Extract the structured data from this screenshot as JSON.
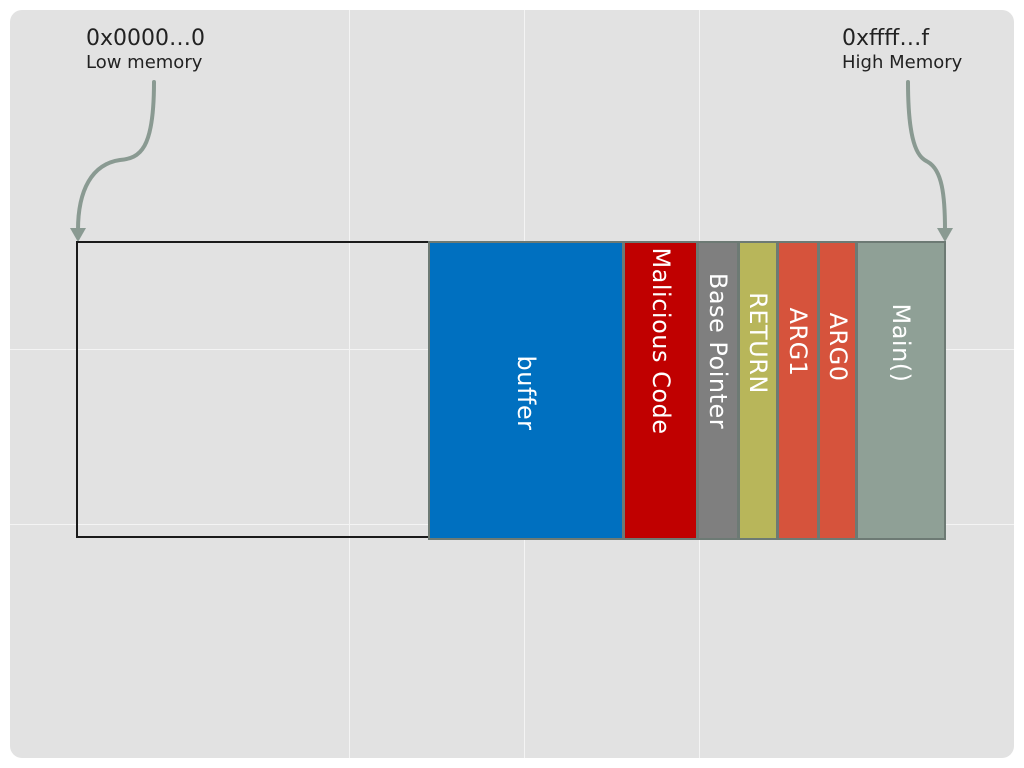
{
  "low_memory": {
    "address": "0x0000…0",
    "label": "Low memory"
  },
  "high_memory": {
    "address": "0xffff…f",
    "label": "High Memory"
  },
  "stack_segments": [
    {
      "label": "buffer",
      "color": "#0070c0",
      "text_color": "#ffffff"
    },
    {
      "label": "Malicious Code",
      "color": "#c00000",
      "text_color": "#ffffff"
    },
    {
      "label": "Base Pointer",
      "color": "#7f7f7f",
      "text_color": "#ffffff"
    },
    {
      "label": "RETURN",
      "color": "#b8b65a",
      "text_color": "#ffffff"
    },
    {
      "label": "ARG1",
      "color": "#d6533c",
      "text_color": "#ffffff"
    },
    {
      "label": "ARG0",
      "color": "#d6533c",
      "text_color": "#ffffff"
    },
    {
      "label": "Main()",
      "color": "#8fa096",
      "text_color": "#ffffff"
    }
  ],
  "colors": {
    "background": "#e2e2e2",
    "arrow": "#8a9a92",
    "outline": "#1a1a1a"
  }
}
